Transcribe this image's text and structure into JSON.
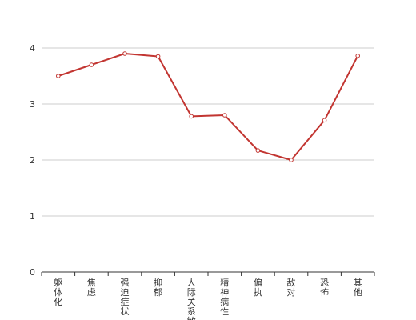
{
  "chart_data": {
    "type": "line",
    "categories": [
      "躯体化",
      "焦虑",
      "强迫症状",
      "抑郁",
      "人际关系敏感",
      "精神病性",
      "偏执",
      "敌对",
      "恐怖",
      "其他"
    ],
    "series": [
      {
        "values": [
          3.5,
          3.7,
          3.9,
          3.85,
          2.78,
          2.8,
          2.17,
          2.0,
          2.71,
          3.86
        ]
      }
    ],
    "yticks": [
      "0",
      "1",
      "2",
      "3",
      "4"
    ],
    "ylim": [
      0,
      4
    ],
    "grid": true,
    "title": "",
    "xlabel": "",
    "ylabel": "",
    "colors": {
      "line": "#c23531",
      "grid": "#cccccc",
      "axis": "#333333"
    }
  }
}
